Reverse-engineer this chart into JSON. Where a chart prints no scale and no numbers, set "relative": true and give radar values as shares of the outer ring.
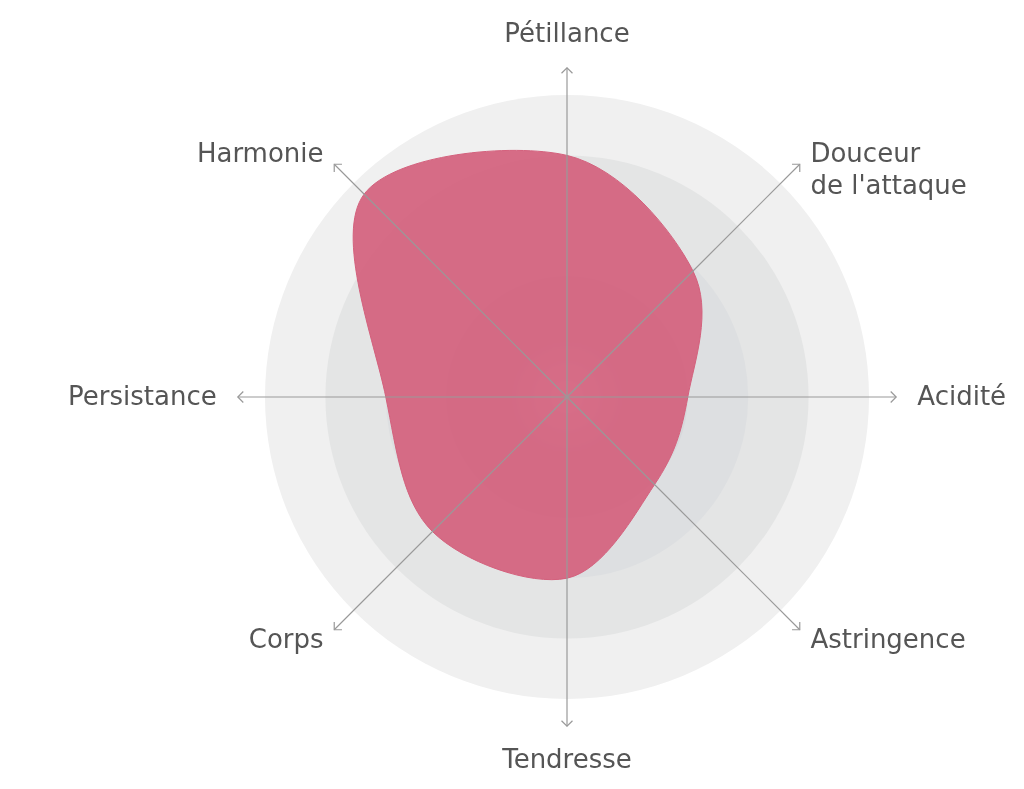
{
  "chart_data": {
    "type": "radar",
    "relative": true,
    "grid": true,
    "categories": [
      "Pétillance",
      "Douceur\nde l'attaque",
      "Acidité",
      "Astringence",
      "Tendresse",
      "Corps",
      "Persistance",
      "Harmonie"
    ],
    "series": [
      {
        "color": "#d4617d",
        "values": [
          0.8,
          0.59,
          0.4,
          0.41,
          0.6,
          0.63,
          0.6,
          0.95
        ]
      }
    ]
  }
}
